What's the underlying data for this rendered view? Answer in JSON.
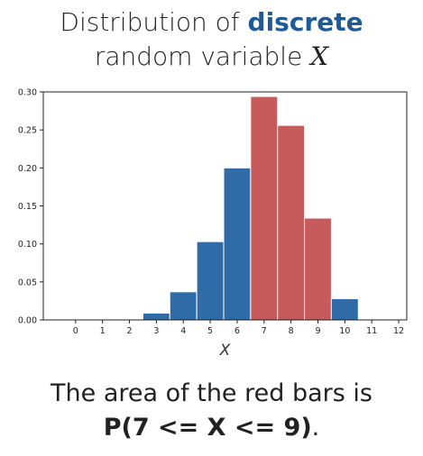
{
  "header": {
    "title_prefix": "Distribution of ",
    "title_accent": "discrete",
    "title_line2": "random variable ",
    "title_var": "X"
  },
  "caption": {
    "line1": "The area of the red bars is",
    "expression": "P(7 <= X <= 9)",
    "period": "."
  },
  "colors": {
    "accent": "#1f5a99",
    "blue_bar": "#2f6ca7",
    "red_bar": "#c75b5b"
  },
  "chart_data": {
    "type": "bar",
    "xlabel": "X",
    "ylabel": "",
    "x_ticks": [
      0,
      1,
      2,
      3,
      4,
      5,
      6,
      7,
      8,
      9,
      10,
      11,
      12
    ],
    "x_range": [
      -1.2,
      12.3
    ],
    "ylim": [
      0,
      0.3
    ],
    "y_ticks": [
      0.0,
      0.05,
      0.1,
      0.15,
      0.2,
      0.25,
      0.3
    ],
    "y_tick_labels": [
      "0.00",
      "0.05",
      "0.10",
      "0.15",
      "0.20",
      "0.25",
      "0.30"
    ],
    "grid": false,
    "bars": [
      {
        "x": 0,
        "p": 0.0,
        "highlight": false
      },
      {
        "x": 1,
        "p": 0.0,
        "highlight": false
      },
      {
        "x": 2,
        "p": 0.0,
        "highlight": false
      },
      {
        "x": 3,
        "p": 0.009,
        "highlight": false
      },
      {
        "x": 4,
        "p": 0.037,
        "highlight": false
      },
      {
        "x": 5,
        "p": 0.103,
        "highlight": false
      },
      {
        "x": 6,
        "p": 0.2,
        "highlight": false
      },
      {
        "x": 7,
        "p": 0.294,
        "highlight": true
      },
      {
        "x": 8,
        "p": 0.256,
        "highlight": true
      },
      {
        "x": 9,
        "p": 0.134,
        "highlight": true
      },
      {
        "x": 10,
        "p": 0.028,
        "highlight": false
      }
    ]
  }
}
